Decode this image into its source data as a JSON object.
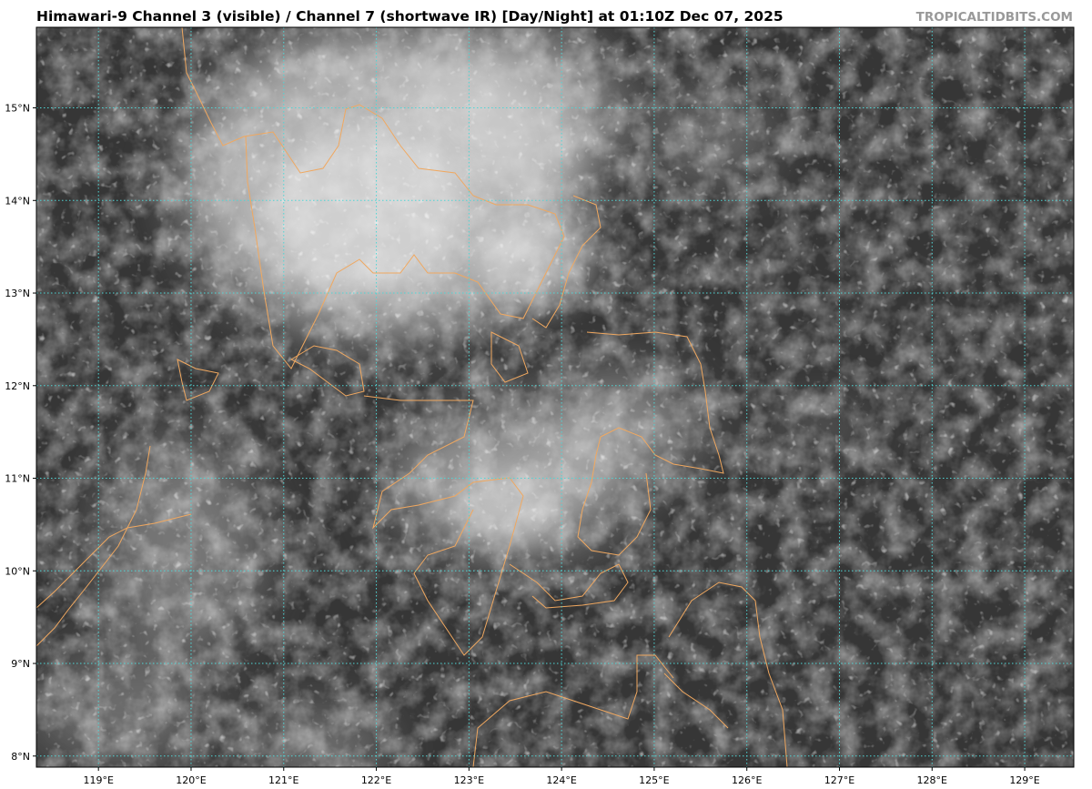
{
  "header": {
    "title": "Himawari-9 Channel 3 (visible) / Channel 7 (shortwave IR) [Day/Night] at 01:10Z Dec 07, 2025",
    "brand": "TROPICALTIDBITS.COM"
  },
  "map": {
    "type": "satellite-imagery",
    "projection": "plate-carree",
    "lon_range": [
      118.33,
      129.53
    ],
    "lat_range": [
      7.88,
      15.87
    ],
    "gridlines": true,
    "gridline_style": "dotted",
    "colors": {
      "gridline": "#4fd6d6",
      "coastline": "#f0a860",
      "background_dark": "#333333",
      "cloud_bright": "#e6e6e6"
    },
    "lon_ticks": [
      119,
      120,
      121,
      122,
      123,
      124,
      125,
      126,
      127,
      128,
      129
    ],
    "lon_tick_labels": [
      "119°E",
      "120°E",
      "121°E",
      "122°E",
      "123°E",
      "124°E",
      "125°E",
      "126°E",
      "127°E",
      "128°E",
      "129°E"
    ],
    "lat_ticks": [
      8,
      9,
      10,
      11,
      12,
      13,
      14,
      15
    ],
    "lat_tick_labels": [
      "8°N",
      "9°N",
      "10°N",
      "11°N",
      "12°N",
      "13°N",
      "14°N",
      "15°N"
    ]
  }
}
